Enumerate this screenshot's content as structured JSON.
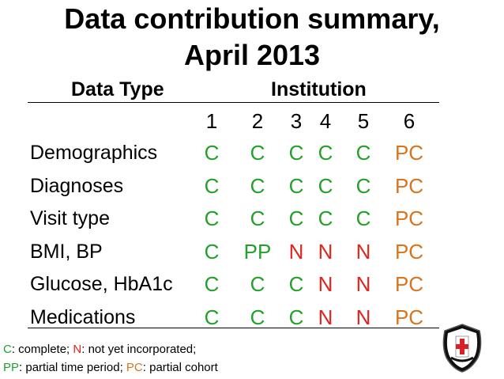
{
  "title": {
    "line1": "Data contribution summary,",
    "line2": "April 2013"
  },
  "table": {
    "header_datatype": "Data Type",
    "header_institution": "Institution",
    "institutions": [
      "1",
      "2",
      "3",
      "4",
      "5",
      "6"
    ],
    "rows": [
      {
        "label": "Demographics",
        "values": [
          "C",
          "C",
          "C",
          "C",
          "C",
          "PC"
        ]
      },
      {
        "label": "Diagnoses",
        "values": [
          "C",
          "C",
          "C",
          "C",
          "C",
          "PC"
        ]
      },
      {
        "label": "Visit type",
        "values": [
          "C",
          "C",
          "C",
          "C",
          "C",
          "PC"
        ]
      },
      {
        "label": "BMI, BP",
        "values": [
          "C",
          "PP",
          "N",
          "N",
          "N",
          "PC"
        ]
      },
      {
        "label": "Glucose, HbA1c",
        "values": [
          "C",
          "C",
          "C",
          "N",
          "N",
          "PC"
        ]
      },
      {
        "label": "Medications",
        "values": [
          "C",
          "C",
          "C",
          "N",
          "N",
          "PC"
        ]
      }
    ]
  },
  "legend": {
    "c_code": "C",
    "c_text": ": complete; ",
    "n_code": "N",
    "n_text": ": not yet incorporated;",
    "pp_code": "PP",
    "pp_text": ": partial time period; ",
    "pc_code": "PC",
    "pc_text": ": partial cohort"
  },
  "colors": {
    "complete": "#22a02a",
    "partial_cohort": "#d9741c",
    "partial_time": "#22a02a",
    "not_incorporated": "#e3241c"
  },
  "logo": {
    "icon": "department-of-public-health-chicago-badge-icon"
  }
}
